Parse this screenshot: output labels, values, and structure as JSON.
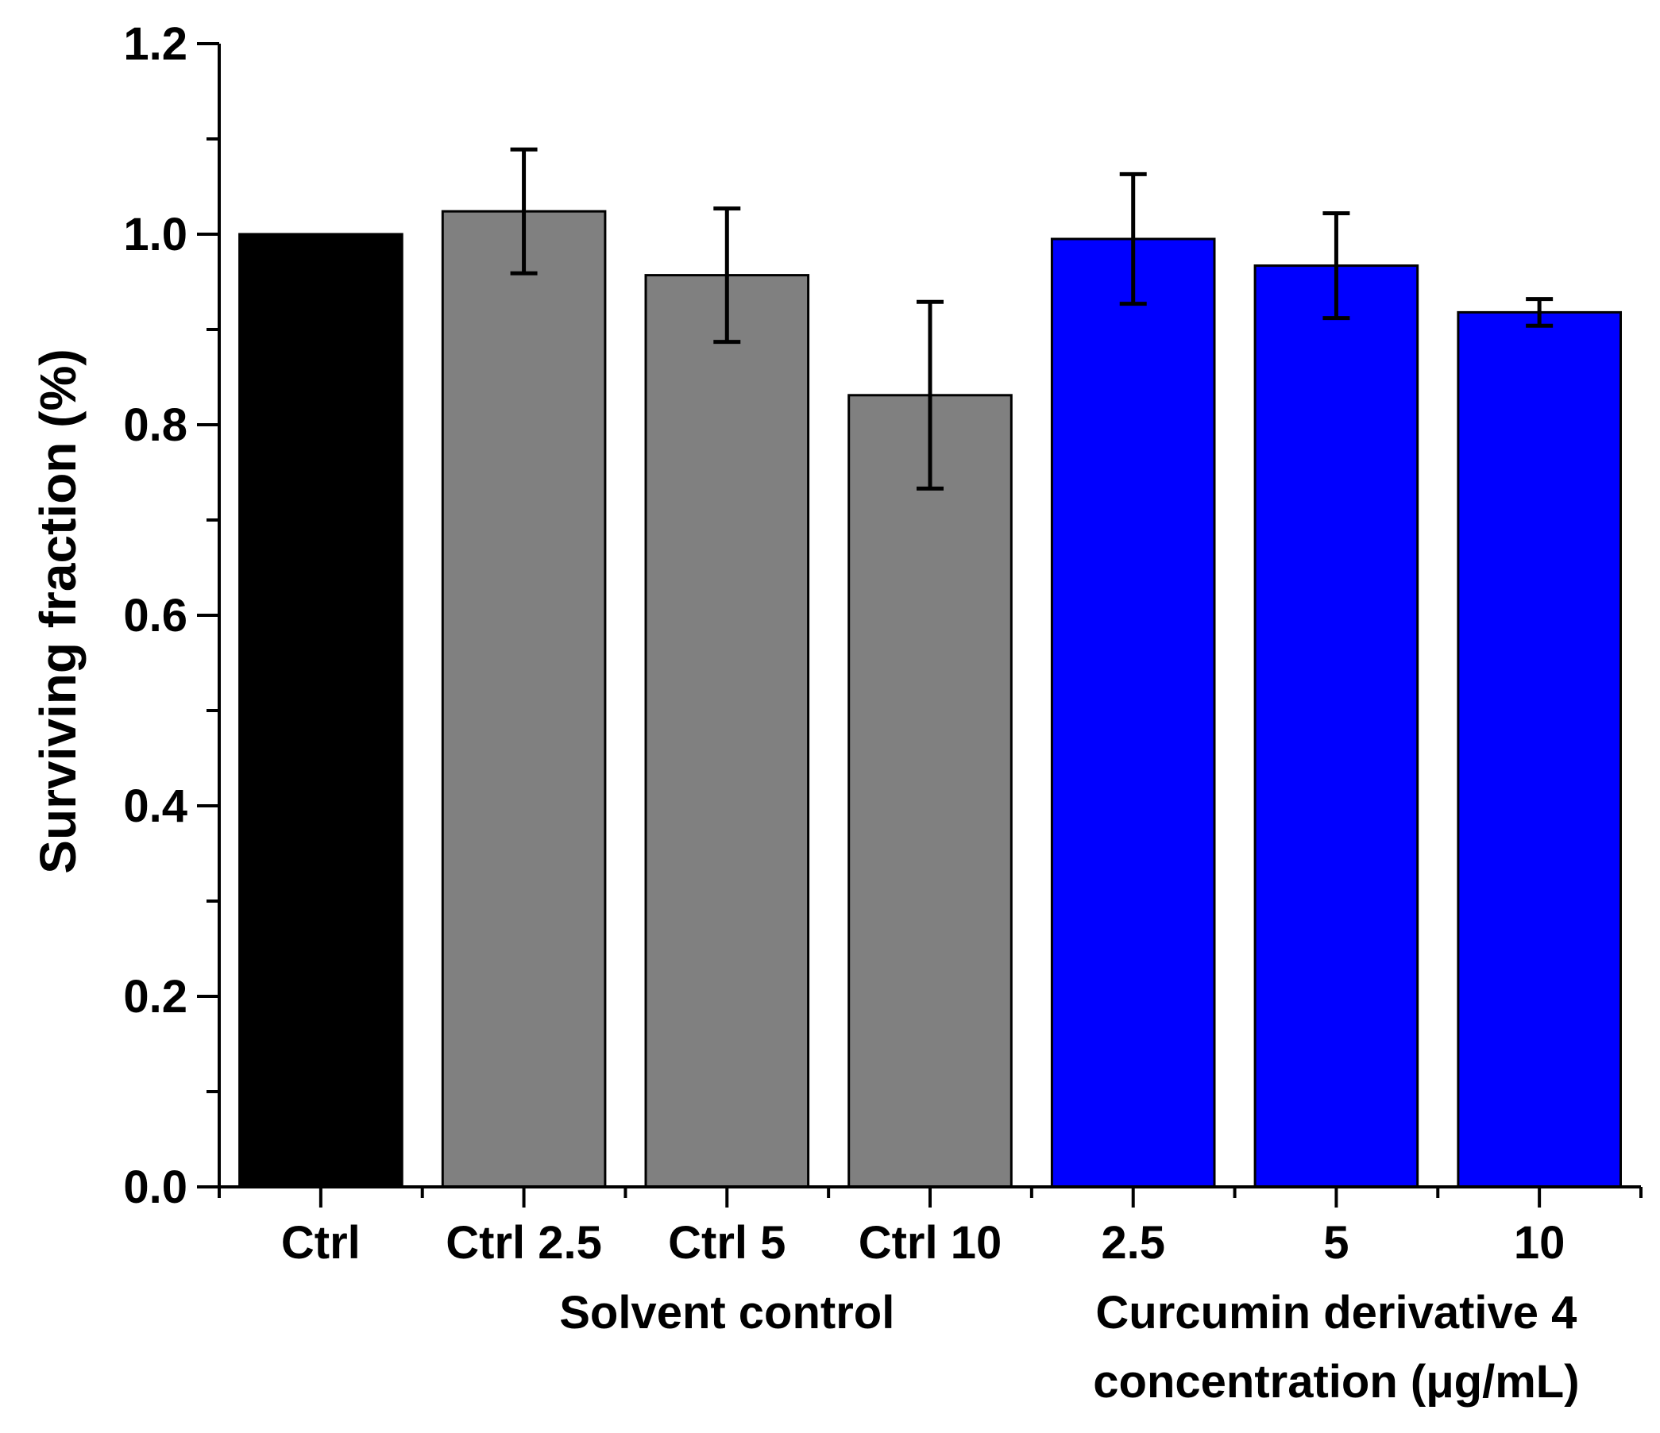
{
  "chart_data": {
    "type": "bar",
    "categories": [
      "Ctrl",
      "Ctrl 2.5",
      "Ctrl 5",
      "Ctrl 10",
      "2.5",
      "5",
      "10"
    ],
    "values": [
      1.0,
      1.024,
      0.957,
      0.831,
      0.995,
      0.967,
      0.918
    ],
    "errors": [
      0,
      0.065,
      0.07,
      0.098,
      0.068,
      0.055,
      0.014
    ],
    "colors": [
      "#000000",
      "#808080",
      "#808080",
      "#808080",
      "#0000ff",
      "#0000ff",
      "#0000ff"
    ],
    "edge_color": "#000000",
    "title": "",
    "xlabel": "",
    "ylabel": "Surviving fraction (%)",
    "ylim": [
      0,
      1.2
    ],
    "yticks": [
      "0.0",
      "0.2",
      "0.4",
      "0.6",
      "0.8",
      "1.0",
      "1.2"
    ],
    "ytick_values": [
      0,
      0.2,
      0.4,
      0.6,
      0.8,
      1.0,
      1.2
    ],
    "grid": false,
    "group_labels": [
      {
        "text": "Solvent control",
        "from": 1,
        "to": 3
      },
      {
        "text": "Curcumin derivative 4",
        "text2": "concentration (μg/mL)",
        "from": 4,
        "to": 6
      }
    ]
  }
}
